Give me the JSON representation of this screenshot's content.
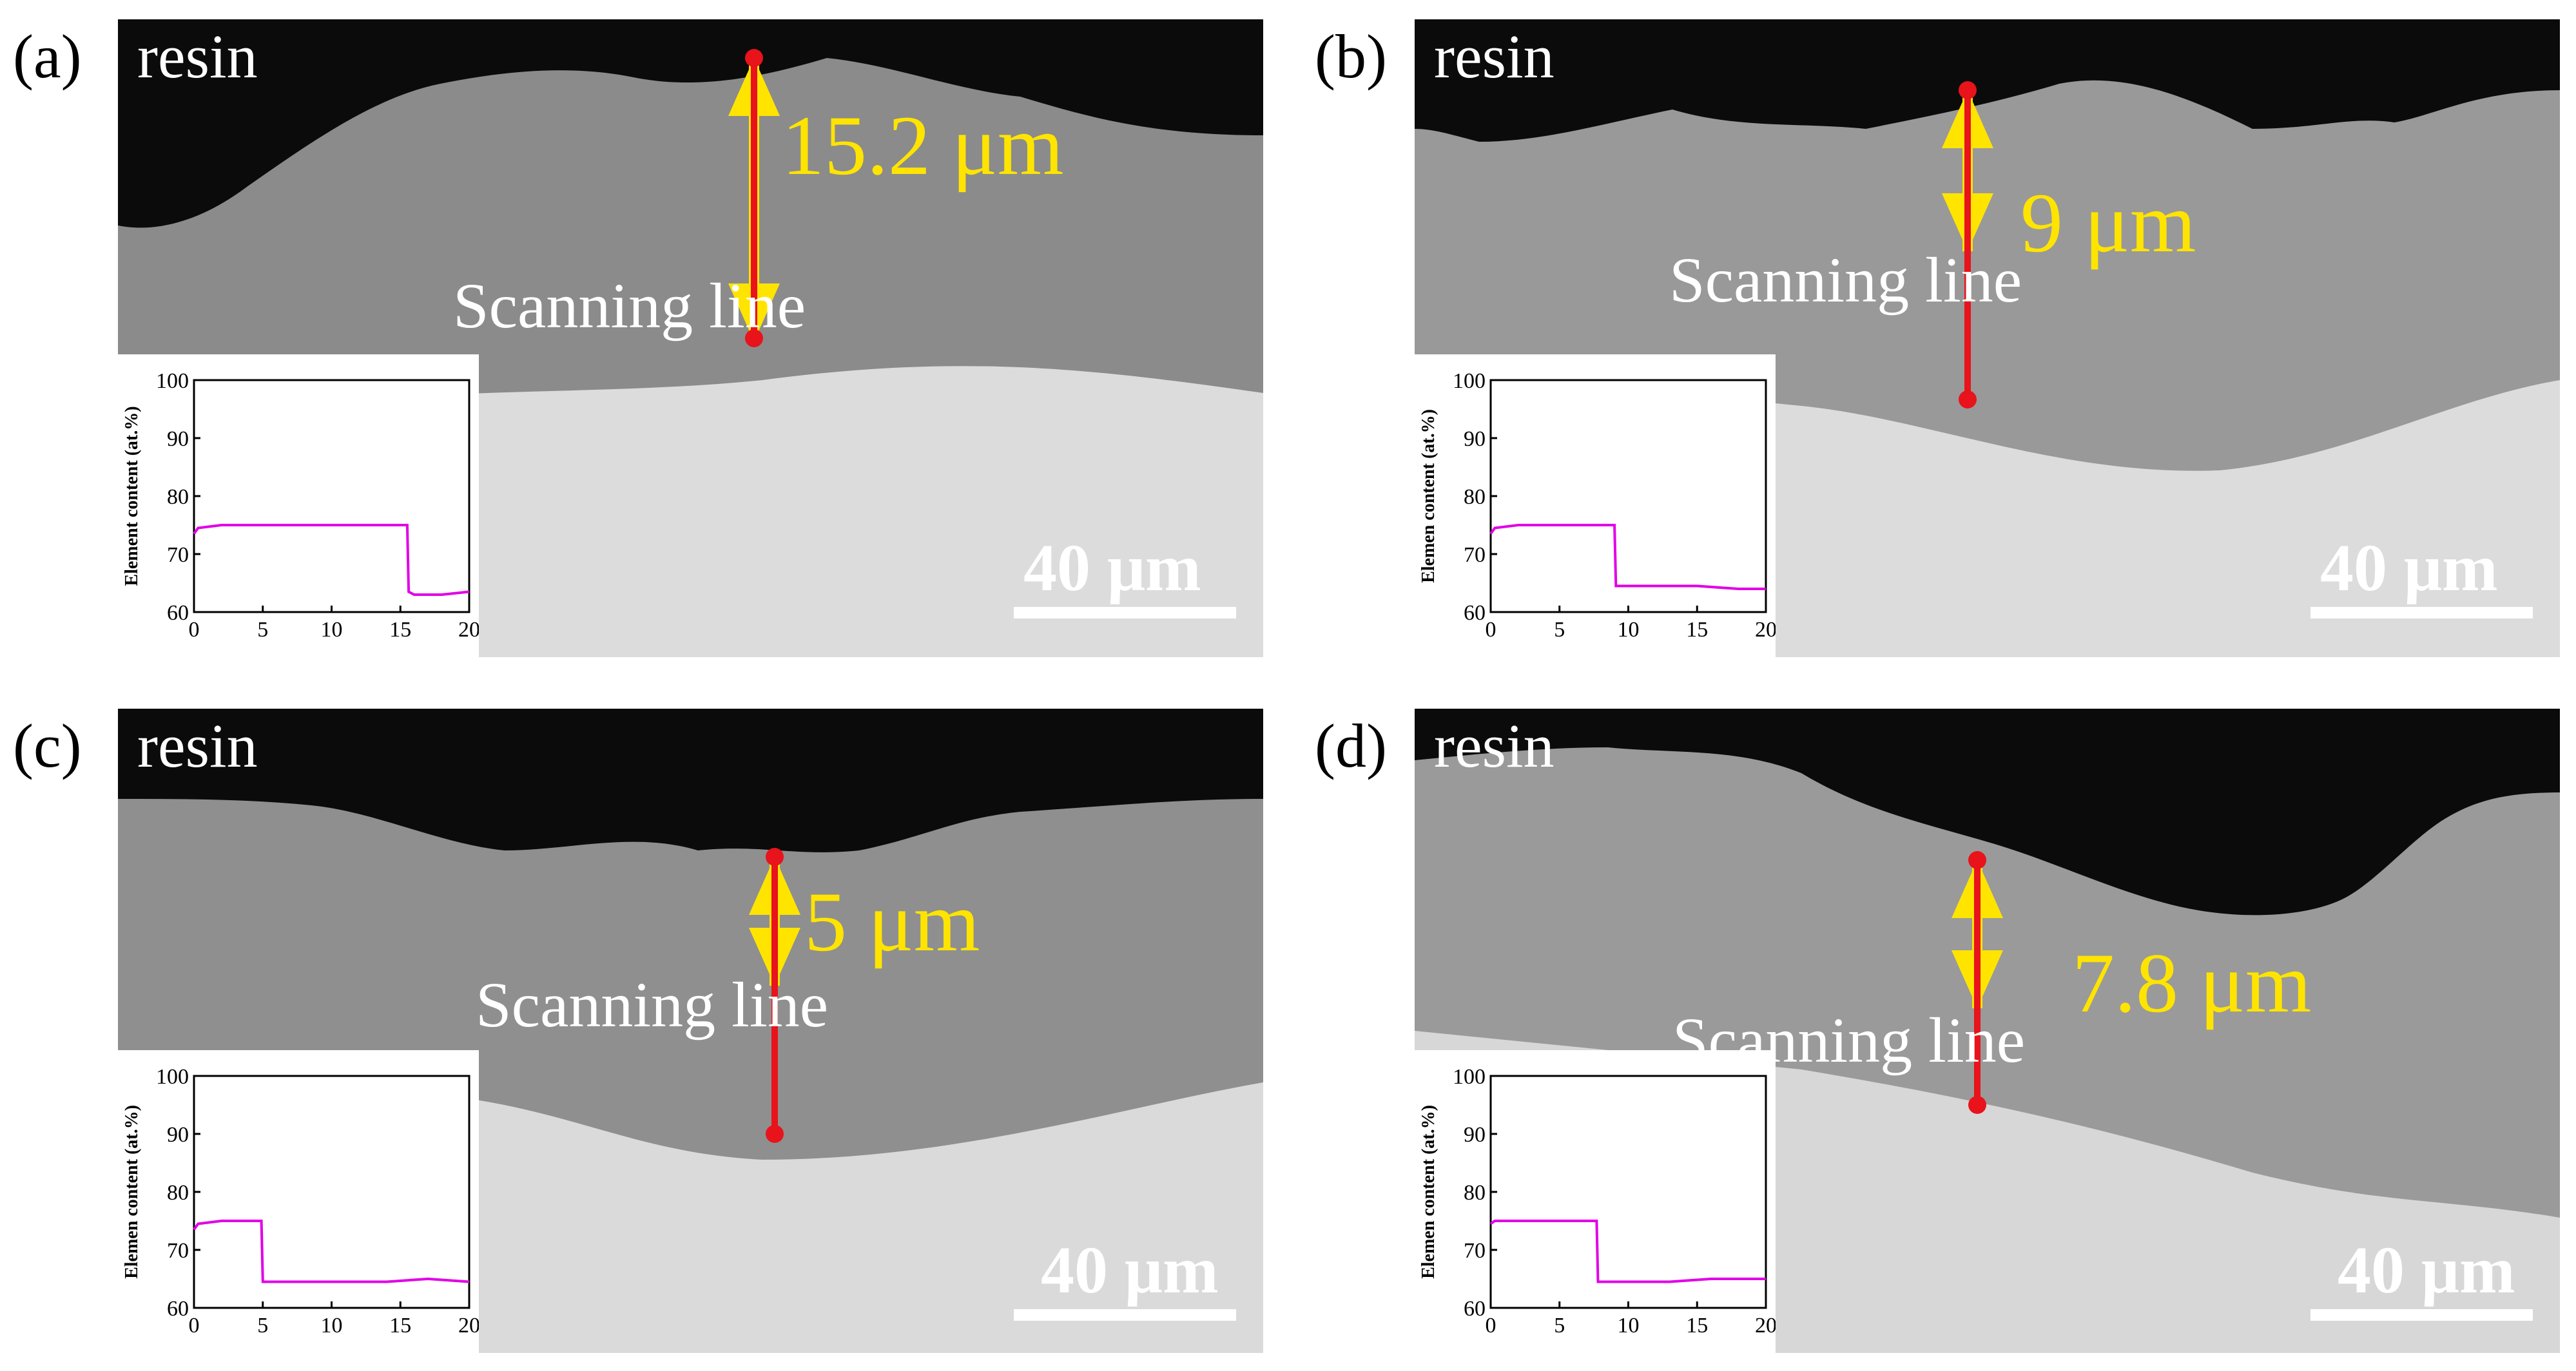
{
  "figure": {
    "panels": [
      {
        "letter": "(a)",
        "resin": "resin",
        "thickness": "15.2 μm",
        "scan": "Scanning line",
        "scale": "40 μm"
      },
      {
        "letter": "(b)",
        "resin": "resin",
        "thickness": "9 μm",
        "scan": "Scanning line",
        "scale": "40 μm"
      },
      {
        "letter": "(c)",
        "resin": "resin",
        "thickness": "5 μm",
        "scan": "Scanning line",
        "scale": "40 μm"
      },
      {
        "letter": "(d)",
        "resin": "resin",
        "thickness": "7.8 μm",
        "scan": "Scanning line",
        "scale": "40 μm"
      }
    ],
    "colors": {
      "arrow": "#ffe400",
      "scan_line": "#e8131b",
      "profile": "#e100e6",
      "resin": "#0b0b0b"
    }
  },
  "chart_data": [
    {
      "type": "line",
      "panel": "(a)",
      "ylabel": "Element content (at.%)",
      "xlim": [
        0,
        20
      ],
      "ylim": [
        60,
        100
      ],
      "xticks": [
        "0",
        "5",
        "10",
        "15",
        "20"
      ],
      "yticks": [
        "60",
        "70",
        "80",
        "90",
        "100"
      ],
      "series": [
        {
          "x": [
            0,
            0.3,
            2,
            5,
            8,
            11,
            14,
            15.5,
            15.6,
            16,
            18,
            20
          ],
          "y": [
            73.5,
            74.5,
            75,
            75,
            75,
            75,
            75,
            75,
            63.5,
            63,
            63,
            63.5
          ]
        }
      ]
    },
    {
      "type": "line",
      "panel": "(b)",
      "ylabel": "Elemen content (at.%)",
      "xlim": [
        0,
        20
      ],
      "ylim": [
        60,
        100
      ],
      "xticks": [
        "0",
        "5",
        "10",
        "15",
        "20"
      ],
      "yticks": [
        "60",
        "70",
        "80",
        "90",
        "100"
      ],
      "series": [
        {
          "x": [
            0,
            0.3,
            2,
            5,
            8,
            9,
            9.1,
            12,
            15,
            18,
            20
          ],
          "y": [
            73.5,
            74.5,
            75,
            75,
            75,
            75,
            64.5,
            64.5,
            64.5,
            64,
            64
          ]
        }
      ]
    },
    {
      "type": "line",
      "panel": "(c)",
      "ylabel": "Elemen content (at.%)",
      "xlim": [
        0,
        20
      ],
      "ylim": [
        60,
        100
      ],
      "xticks": [
        "0",
        "5",
        "10",
        "15",
        "20"
      ],
      "yticks": [
        "60",
        "70",
        "80",
        "90",
        "100"
      ],
      "series": [
        {
          "x": [
            0,
            0.3,
            2,
            4.9,
            5,
            8,
            11,
            14,
            17,
            20
          ],
          "y": [
            73.5,
            74.5,
            75,
            75,
            64.5,
            64.5,
            64.5,
            64.5,
            65,
            64.5
          ]
        }
      ]
    },
    {
      "type": "line",
      "panel": "(d)",
      "ylabel": "Elemen content (at.%)",
      "xlim": [
        0,
        20
      ],
      "ylim": [
        60,
        100
      ],
      "xticks": [
        "0",
        "5",
        "10",
        "15",
        "20"
      ],
      "yticks": [
        "60",
        "70",
        "80",
        "90",
        "100"
      ],
      "series": [
        {
          "x": [
            0,
            0.3,
            2,
            5,
            7.7,
            7.8,
            10,
            13,
            16,
            20
          ],
          "y": [
            74.5,
            75,
            75,
            75,
            75,
            64.5,
            64.5,
            64.5,
            65,
            65
          ]
        }
      ]
    }
  ]
}
